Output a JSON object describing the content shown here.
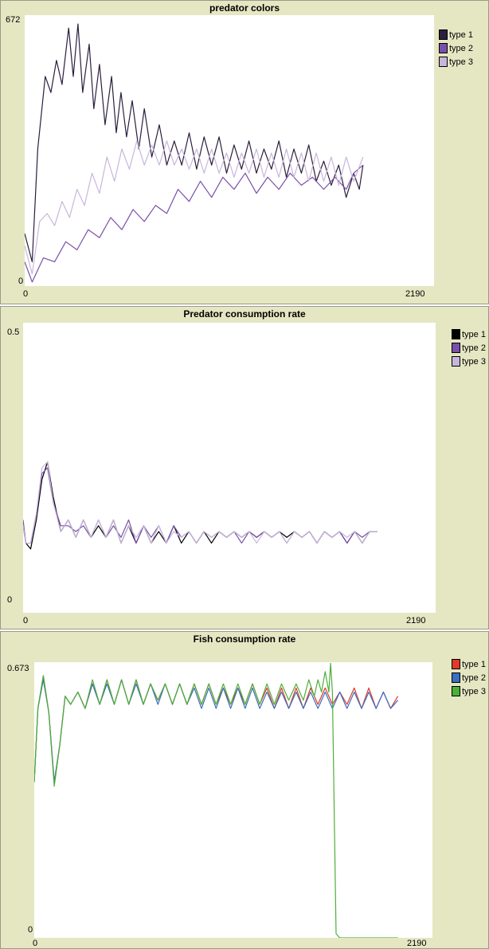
{
  "chart_data": [
    {
      "type": "line",
      "title": "predator colors",
      "xlim": [
        0,
        2190
      ],
      "ylim": [
        0,
        672
      ],
      "x_tick_labels": [
        "0",
        "2190"
      ],
      "y_tick_labels": [
        "0",
        "672"
      ],
      "grid": false,
      "legend_position": "right",
      "series": [
        {
          "name": "type 1",
          "color": "#2b1e3e",
          "x": [
            0,
            40,
            70,
            110,
            140,
            170,
            200,
            235,
            260,
            285,
            310,
            345,
            370,
            400,
            430,
            465,
            490,
            515,
            545,
            575,
            610,
            640,
            680,
            720,
            760,
            800,
            840,
            880,
            920,
            960,
            1000,
            1040,
            1080,
            1120,
            1160,
            1200,
            1240,
            1280,
            1320,
            1360,
            1400,
            1440,
            1480,
            1520,
            1560,
            1600,
            1640,
            1680,
            1720,
            1760,
            1790,
            1810
          ],
          "y": [
            130,
            60,
            340,
            520,
            480,
            560,
            500,
            640,
            520,
            650,
            480,
            600,
            440,
            550,
            400,
            520,
            380,
            480,
            370,
            460,
            340,
            440,
            320,
            400,
            300,
            360,
            300,
            380,
            290,
            370,
            300,
            370,
            280,
            350,
            290,
            360,
            280,
            340,
            290,
            360,
            270,
            340,
            280,
            350,
            260,
            310,
            250,
            300,
            220,
            280,
            240,
            300
          ]
        },
        {
          "name": "type 2",
          "color": "#7a50aa",
          "x": [
            0,
            40,
            100,
            160,
            220,
            280,
            340,
            400,
            460,
            520,
            580,
            640,
            700,
            760,
            820,
            880,
            940,
            1000,
            1060,
            1120,
            1180,
            1240,
            1300,
            1360,
            1420,
            1480,
            1540,
            1600,
            1660,
            1720,
            1760,
            1810
          ],
          "y": [
            60,
            10,
            70,
            60,
            110,
            90,
            140,
            120,
            170,
            140,
            190,
            160,
            200,
            180,
            240,
            210,
            260,
            220,
            270,
            240,
            280,
            230,
            270,
            240,
            280,
            250,
            270,
            240,
            270,
            240,
            280,
            300
          ]
        },
        {
          "name": "type 3",
          "color": "#c8b6da",
          "x": [
            0,
            40,
            80,
            120,
            160,
            200,
            240,
            280,
            320,
            360,
            400,
            440,
            480,
            520,
            560,
            600,
            640,
            680,
            720,
            760,
            800,
            840,
            880,
            920,
            960,
            1000,
            1040,
            1080,
            1120,
            1160,
            1200,
            1240,
            1280,
            1320,
            1360,
            1400,
            1440,
            1480,
            1520,
            1560,
            1600,
            1640,
            1680,
            1720,
            1760,
            1810
          ],
          "y": [
            100,
            30,
            160,
            180,
            150,
            210,
            170,
            240,
            200,
            280,
            230,
            320,
            260,
            340,
            290,
            360,
            300,
            350,
            300,
            360,
            300,
            340,
            290,
            340,
            280,
            340,
            280,
            330,
            270,
            330,
            280,
            340,
            270,
            330,
            270,
            340,
            270,
            330,
            260,
            330,
            260,
            320,
            250,
            320,
            260,
            320
          ]
        }
      ]
    },
    {
      "type": "line",
      "title": "Predator consumption rate",
      "xlim": [
        0,
        2190
      ],
      "ylim": [
        0,
        0.5
      ],
      "x_tick_labels": [
        "0",
        "2190"
      ],
      "y_tick_labels": [
        "0",
        "0.5"
      ],
      "grid": false,
      "legend_position": "right",
      "series": [
        {
          "name": "type 1",
          "color": "#000000",
          "x": [
            0,
            15,
            40,
            70,
            100,
            130,
            160,
            200,
            240,
            280,
            320,
            360,
            400,
            440,
            480,
            520,
            560,
            600,
            640,
            680,
            720,
            760,
            800,
            840,
            880,
            920,
            960,
            1000,
            1040,
            1080,
            1120,
            1160,
            1200,
            1240,
            1280,
            1320,
            1360,
            1400,
            1440,
            1480,
            1520,
            1560,
            1600,
            1640,
            1680,
            1720,
            1760,
            1800,
            1840,
            1880
          ],
          "y": [
            0.15,
            0.12,
            0.11,
            0.16,
            0.23,
            0.26,
            0.2,
            0.14,
            0.16,
            0.13,
            0.16,
            0.13,
            0.15,
            0.13,
            0.16,
            0.12,
            0.15,
            0.12,
            0.15,
            0.12,
            0.14,
            0.12,
            0.15,
            0.12,
            0.14,
            0.12,
            0.14,
            0.12,
            0.14,
            0.13,
            0.14,
            0.13,
            0.14,
            0.13,
            0.14,
            0.13,
            0.14,
            0.13,
            0.14,
            0.13,
            0.14,
            0.12,
            0.14,
            0.13,
            0.14,
            0.12,
            0.14,
            0.12,
            0.14,
            0.14
          ]
        },
        {
          "name": "type 2",
          "color": "#7a50aa",
          "x": [
            0,
            15,
            40,
            70,
            100,
            130,
            160,
            200,
            240,
            280,
            320,
            360,
            400,
            440,
            480,
            520,
            560,
            600,
            640,
            680,
            720,
            760,
            800,
            840,
            880,
            920,
            960,
            1000,
            1040,
            1080,
            1120,
            1160,
            1200,
            1240,
            1280,
            1320,
            1360,
            1400,
            1440,
            1480,
            1520,
            1560,
            1600,
            1640,
            1680,
            1720,
            1760,
            1800,
            1840,
            1880
          ],
          "y": [
            0.16,
            0.12,
            0.12,
            0.17,
            0.24,
            0.25,
            0.19,
            0.15,
            0.15,
            0.14,
            0.15,
            0.13,
            0.16,
            0.13,
            0.15,
            0.13,
            0.16,
            0.12,
            0.15,
            0.13,
            0.15,
            0.12,
            0.15,
            0.13,
            0.14,
            0.12,
            0.14,
            0.13,
            0.14,
            0.13,
            0.14,
            0.12,
            0.14,
            0.13,
            0.14,
            0.13,
            0.14,
            0.12,
            0.14,
            0.13,
            0.14,
            0.12,
            0.14,
            0.13,
            0.14,
            0.12,
            0.14,
            0.13,
            0.14,
            0.14
          ]
        },
        {
          "name": "type 3",
          "color": "#c8b6da",
          "x": [
            0,
            15,
            40,
            70,
            100,
            130,
            160,
            200,
            240,
            280,
            320,
            360,
            400,
            440,
            480,
            520,
            560,
            600,
            640,
            680,
            720,
            760,
            800,
            840,
            880,
            920,
            960,
            1000,
            1040,
            1080,
            1120,
            1160,
            1200,
            1240,
            1280,
            1320,
            1360,
            1400,
            1440,
            1480,
            1520,
            1560,
            1600,
            1640,
            1680,
            1720,
            1760,
            1800,
            1840,
            1880
          ],
          "y": [
            0.15,
            0.12,
            0.12,
            0.17,
            0.25,
            0.26,
            0.19,
            0.14,
            0.16,
            0.13,
            0.16,
            0.13,
            0.16,
            0.13,
            0.16,
            0.12,
            0.15,
            0.13,
            0.15,
            0.12,
            0.15,
            0.12,
            0.14,
            0.13,
            0.14,
            0.12,
            0.14,
            0.13,
            0.14,
            0.13,
            0.14,
            0.13,
            0.14,
            0.12,
            0.14,
            0.13,
            0.14,
            0.12,
            0.14,
            0.13,
            0.14,
            0.12,
            0.14,
            0.13,
            0.14,
            0.13,
            0.14,
            0.12,
            0.14,
            0.14
          ]
        }
      ]
    },
    {
      "type": "line",
      "title": "Fish consumption rate",
      "xlim": [
        0,
        2190
      ],
      "ylim": [
        0,
        0.673
      ],
      "x_tick_labels": [
        "0",
        "2190"
      ],
      "y_tick_labels": [
        "0",
        "0.673"
      ],
      "grid": false,
      "legend_position": "right",
      "series": [
        {
          "name": "type 1",
          "color": "#e03a2c",
          "x": [
            0,
            20,
            50,
            80,
            110,
            140,
            170,
            200,
            240,
            280,
            320,
            360,
            400,
            440,
            480,
            520,
            560,
            600,
            640,
            680,
            720,
            760,
            800,
            840,
            880,
            920,
            960,
            1000,
            1040,
            1080,
            1120,
            1160,
            1200,
            1240,
            1280,
            1320,
            1360,
            1400,
            1440,
            1480,
            1520,
            1560,
            1600,
            1640,
            1680,
            1720,
            1760,
            1800,
            1840,
            1880,
            1920,
            1960,
            2000
          ],
          "y": [
            0.38,
            0.56,
            0.64,
            0.55,
            0.38,
            0.47,
            0.59,
            0.57,
            0.6,
            0.56,
            0.62,
            0.57,
            0.63,
            0.57,
            0.63,
            0.57,
            0.63,
            0.57,
            0.62,
            0.58,
            0.62,
            0.57,
            0.62,
            0.57,
            0.62,
            0.57,
            0.62,
            0.57,
            0.61,
            0.57,
            0.61,
            0.57,
            0.62,
            0.57,
            0.61,
            0.56,
            0.61,
            0.56,
            0.61,
            0.56,
            0.61,
            0.57,
            0.61,
            0.57,
            0.6,
            0.57,
            0.61,
            0.56,
            0.61,
            0.56,
            0.6,
            0.56,
            0.59
          ]
        },
        {
          "name": "type 2",
          "color": "#3b6fbf",
          "x": [
            0,
            20,
            50,
            80,
            110,
            140,
            170,
            200,
            240,
            280,
            320,
            360,
            400,
            440,
            480,
            520,
            560,
            600,
            640,
            680,
            720,
            760,
            800,
            840,
            880,
            920,
            960,
            1000,
            1040,
            1080,
            1120,
            1160,
            1200,
            1240,
            1280,
            1320,
            1360,
            1400,
            1440,
            1480,
            1520,
            1560,
            1600,
            1640,
            1680,
            1720,
            1760,
            1800,
            1840,
            1880,
            1920,
            1960,
            2000
          ],
          "y": [
            0.38,
            0.56,
            0.63,
            0.55,
            0.38,
            0.47,
            0.59,
            0.57,
            0.6,
            0.56,
            0.62,
            0.57,
            0.62,
            0.57,
            0.63,
            0.57,
            0.62,
            0.57,
            0.62,
            0.57,
            0.62,
            0.57,
            0.62,
            0.57,
            0.61,
            0.56,
            0.61,
            0.56,
            0.61,
            0.56,
            0.61,
            0.56,
            0.61,
            0.56,
            0.6,
            0.56,
            0.6,
            0.56,
            0.6,
            0.56,
            0.6,
            0.56,
            0.6,
            0.56,
            0.6,
            0.56,
            0.6,
            0.56,
            0.6,
            0.56,
            0.6,
            0.56,
            0.58
          ]
        },
        {
          "name": "type 3",
          "color": "#4caf37",
          "x": [
            0,
            20,
            50,
            80,
            110,
            140,
            170,
            200,
            240,
            280,
            320,
            360,
            400,
            440,
            480,
            520,
            560,
            600,
            640,
            680,
            720,
            760,
            800,
            840,
            880,
            920,
            960,
            1000,
            1040,
            1080,
            1120,
            1160,
            1200,
            1240,
            1280,
            1320,
            1360,
            1400,
            1440,
            1480,
            1510,
            1540,
            1560,
            1580,
            1600,
            1620,
            1630,
            1640,
            1650,
            1660,
            1680,
            1700,
            2000
          ],
          "y": [
            0.38,
            0.56,
            0.64,
            0.55,
            0.37,
            0.47,
            0.59,
            0.57,
            0.6,
            0.56,
            0.63,
            0.57,
            0.63,
            0.57,
            0.63,
            0.57,
            0.63,
            0.57,
            0.62,
            0.58,
            0.62,
            0.57,
            0.62,
            0.57,
            0.62,
            0.57,
            0.62,
            0.57,
            0.62,
            0.57,
            0.62,
            0.57,
            0.62,
            0.57,
            0.62,
            0.57,
            0.62,
            0.58,
            0.62,
            0.58,
            0.63,
            0.59,
            0.63,
            0.6,
            0.65,
            0.6,
            0.67,
            0.6,
            0.3,
            0.01,
            0.0,
            0.0,
            0.0
          ]
        }
      ]
    }
  ]
}
